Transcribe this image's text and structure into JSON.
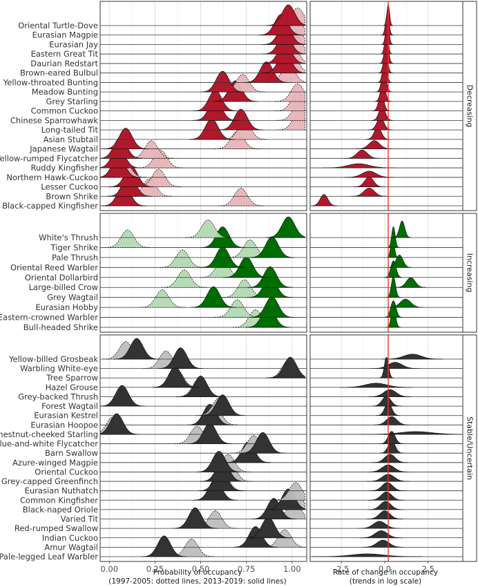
{
  "chart_data": {
    "type": "ridgeline",
    "panels": [
      {
        "name": "Probability of occupancy",
        "xlabel": "Probability of occupancy",
        "xlabel_note": "(1997-2005: dotted lines, 2013-2019: solid lines)",
        "xlim": [
          -0.05,
          1.08
        ],
        "ticks": [
          0.0,
          0.25,
          0.5,
          0.75,
          1.0
        ],
        "tick_labels": [
          "0.00",
          "0.25",
          "0.50",
          "0.75",
          "1.00"
        ]
      },
      {
        "name": "Rate of change in occupancy",
        "xlabel": "Rate of change in occupancy",
        "xlabel_note": "(trends in log scale)",
        "xlim": [
          -4.3,
          4.5
        ],
        "ticks": [
          -2.5,
          0.0,
          2.5
        ],
        "tick_labels": [
          "-2.5",
          "0.0",
          "2.5"
        ],
        "reference_line": 0.2
      }
    ],
    "groups": [
      {
        "name": "Decreasing",
        "solid_color": "#b2182b",
        "dotted_color": "#e8b4b8",
        "species": [
          {
            "name": "Oriental Turtle-Dove",
            "p_early": 1.03,
            "p_late": 0.98,
            "rate": 0.2,
            "rate_sd": 0.08
          },
          {
            "name": "Eurasian Magpie",
            "p_early": 1.02,
            "p_late": 0.94,
            "rate": 0.15,
            "rate_sd": 0.1
          },
          {
            "name": "Eurasian Jay",
            "p_early": 1.02,
            "p_late": 0.96,
            "rate": 0.15,
            "rate_sd": 0.1
          },
          {
            "name": "Eastern Great Tit",
            "p_early": 1.02,
            "p_late": 0.96,
            "rate": 0.1,
            "rate_sd": 0.1
          },
          {
            "name": "Daurian Redstart",
            "p_early": 1.0,
            "p_late": 0.96,
            "rate": 0.1,
            "rate_sd": 0.12
          },
          {
            "name": "Brown-eared Bulbul",
            "p_early": 1.0,
            "p_late": 0.96,
            "rate": 0.05,
            "rate_sd": 0.12
          },
          {
            "name": "Yellow-throated Bunting",
            "p_early": 0.98,
            "p_late": 0.86,
            "rate": 0.0,
            "rate_sd": 0.12
          },
          {
            "name": "Meadow Bunting",
            "p_early": 0.73,
            "p_late": 0.62,
            "rate": -0.05,
            "rate_sd": 0.14
          },
          {
            "name": "Grey Starling",
            "p_early": 1.03,
            "p_late": 0.69,
            "rate": -0.1,
            "rate_sd": 0.14
          },
          {
            "name": "Common Cuckoo",
            "p_early": 1.03,
            "p_late": 0.58,
            "rate": -0.2,
            "rate_sd": 0.15
          },
          {
            "name": "Chinese Sparrowhawk",
            "p_early": 1.04,
            "p_late": 0.58,
            "rate": -0.15,
            "rate_sd": 0.18
          },
          {
            "name": "Long-tailed Tit",
            "p_early": 1.04,
            "p_late": 0.72,
            "rate": -0.25,
            "rate_sd": 0.2
          },
          {
            "name": "Asian Stubtail",
            "p_early": 0.74,
            "p_late": 0.56,
            "rate": -0.4,
            "rate_sd": 0.2
          },
          {
            "name": "Japanese Wagtail",
            "p_early": 0.7,
            "p_late": 0.09,
            "rate": -0.6,
            "rate_sd": 0.3
          },
          {
            "name": "Yellow-rumped Flycatcher",
            "p_early": 0.23,
            "p_late": 0.06,
            "rate": -1.3,
            "rate_sd": 0.3
          },
          {
            "name": "Ruddy Kingfisher",
            "p_early": 0.28,
            "p_late": 0.05,
            "rate": -1.5,
            "rate_sd": 0.6
          },
          {
            "name": "Northern Hawk-Cuckoo",
            "p_early": 0.08,
            "p_late": 0.05,
            "rate": -0.9,
            "rate_sd": 0.4
          },
          {
            "name": "Lesser Cuckoo",
            "p_early": 0.27,
            "p_late": 0.12,
            "rate": -0.9,
            "rate_sd": 0.25
          },
          {
            "name": "Brown Shrike",
            "p_early": 0.22,
            "p_late": 0.11,
            "rate": -0.9,
            "rate_sd": 0.3
          },
          {
            "name": "Black-capped Kingfisher",
            "p_early": 0.72,
            "p_late": 0.08,
            "rate": -3.5,
            "rate_sd": 0.22
          }
        ]
      },
      {
        "name": "Increasing",
        "solid_color": "#006d00",
        "dotted_color": "#b3d9b3",
        "species": [
          {
            "name": "White's Thrush",
            "p_early": 0.54,
            "p_late": 0.98,
            "rate": 1.0,
            "rate_sd": 0.15
          },
          {
            "name": "Tiger Shrike",
            "p_early": 0.1,
            "p_late": 0.62,
            "rate": 0.5,
            "rate_sd": 0.1
          },
          {
            "name": "Pale Thrush",
            "p_early": 0.77,
            "p_late": 0.89,
            "rate": 0.45,
            "rate_sd": 0.1
          },
          {
            "name": "Oriental Reed Warbler",
            "p_early": 0.4,
            "p_late": 0.62,
            "rate": 0.85,
            "rate_sd": 0.2
          },
          {
            "name": "Oriental Dollarbird",
            "p_early": 0.62,
            "p_late": 0.75,
            "rate": 0.5,
            "rate_sd": 0.15
          },
          {
            "name": "Large-billed Crow",
            "p_early": 0.41,
            "p_late": 0.88,
            "rate": 1.5,
            "rate_sd": 0.25
          },
          {
            "name": "Grey Wagtail",
            "p_early": 0.74,
            "p_late": 0.88,
            "rate": 0.5,
            "rate_sd": 0.12
          },
          {
            "name": "Eurasian Hobby",
            "p_early": 0.29,
            "p_late": 0.57,
            "rate": 1.2,
            "rate_sd": 0.3
          },
          {
            "name": "Eastern-crowned Warbler",
            "p_early": 0.7,
            "p_late": 0.89,
            "rate": 0.5,
            "rate_sd": 0.15
          },
          {
            "name": "Bull-headed Shrike",
            "p_early": 0.8,
            "p_late": 0.87,
            "rate": 0.5,
            "rate_sd": 0.12
          }
        ]
      },
      {
        "name": "Stable/Uncertain",
        "solid_color": "#333333",
        "dotted_color": "#bdbdbd",
        "species": [
          {
            "name": "Yellow-billed Grosbeak",
            "p_early": 0.09,
            "p_late": 0.15,
            "rate": 1.6,
            "rate_sd": 0.5
          },
          {
            "name": "Warbling White-eye",
            "p_early": 0.31,
            "p_late": 0.39,
            "rate": 0.6,
            "rate_sd": 0.4
          },
          {
            "name": "Tree Sparrow",
            "p_early": 0.98,
            "p_late": 0.99,
            "rate": 0.1,
            "rate_sd": 0.12
          },
          {
            "name": "Hazel Grouse",
            "p_early": 0.37,
            "p_late": 0.36,
            "rate": -0.5,
            "rate_sd": 0.6
          },
          {
            "name": "Grey-backed Thrush",
            "p_early": 0.49,
            "p_late": 0.5,
            "rate": 0.3,
            "rate_sd": 0.35
          },
          {
            "name": "Forest Wagtail",
            "p_early": 0.07,
            "p_late": 0.07,
            "rate": 0.1,
            "rate_sd": 0.25
          },
          {
            "name": "Eurasian Kestrel",
            "p_early": 0.6,
            "p_late": 0.62,
            "rate": 0.2,
            "rate_sd": 0.2
          },
          {
            "name": "Eurasian Hoopoe",
            "p_early": 0.58,
            "p_late": 0.55,
            "rate": 0.4,
            "rate_sd": 0.3
          },
          {
            "name": "Chestnut-cheeked Starling",
            "p_early": 0.02,
            "p_late": 0.04,
            "rate": 1.8,
            "rate_sd": 0.9
          },
          {
            "name": "Blue-and-white Flycatcher",
            "p_early": 0.48,
            "p_late": 0.55,
            "rate": 0.4,
            "rate_sd": 0.2
          },
          {
            "name": "Barn Swallow",
            "p_early": 0.79,
            "p_late": 0.84,
            "rate": 0.4,
            "rate_sd": 0.2
          },
          {
            "name": "Azure-winged Magpie",
            "p_early": 0.76,
            "p_late": 0.76,
            "rate": 0.3,
            "rate_sd": 0.3
          },
          {
            "name": "Oriental Cuckoo",
            "p_early": 0.65,
            "p_late": 0.6,
            "rate": 0.2,
            "rate_sd": 0.35
          },
          {
            "name": "Grey-capped Greenfinch",
            "p_early": 0.66,
            "p_late": 0.62,
            "rate": 0.2,
            "rate_sd": 0.35
          },
          {
            "name": "Eurasian Nuthatch",
            "p_early": 0.62,
            "p_late": 0.61,
            "rate": 0.15,
            "rate_sd": 0.3
          },
          {
            "name": "Common Kingfisher",
            "p_early": 1.02,
            "p_late": 0.58,
            "rate": 0.1,
            "rate_sd": 0.3
          },
          {
            "name": "Black-naped Oriole",
            "p_early": 1.02,
            "p_late": 0.98,
            "rate": 0.05,
            "rate_sd": 0.3
          },
          {
            "name": "Varied Tit",
            "p_early": 1.01,
            "p_late": 0.9,
            "rate": 0.0,
            "rate_sd": 0.3
          },
          {
            "name": "Red-rumped Swallow",
            "p_early": 0.58,
            "p_late": 0.47,
            "rate": -0.3,
            "rate_sd": 0.35
          },
          {
            "name": "Indian Cuckoo",
            "p_early": 0.87,
            "p_late": 0.87,
            "rate": -0.2,
            "rate_sd": 0.35
          },
          {
            "name": "Amur Wagtail",
            "p_early": 0.96,
            "p_late": 0.8,
            "rate": -0.1,
            "rate_sd": 0.35
          },
          {
            "name": "Pale-legged Leaf Warbler",
            "p_early": 0.45,
            "p_late": 0.3,
            "rate": -1.0,
            "rate_sd": 0.9
          }
        ]
      }
    ]
  }
}
